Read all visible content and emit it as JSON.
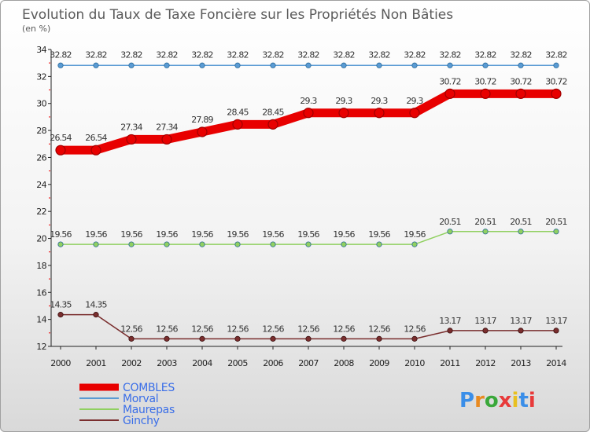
{
  "chart_data": {
    "type": "line",
    "title": "Evolution du Taux de Taxe Foncière sur les Propriétés Non Bâties",
    "subtitle": "(en %)",
    "categories": [
      "2000",
      "2001",
      "2002",
      "2003",
      "2004",
      "2005",
      "2006",
      "2007",
      "2008",
      "2009",
      "2010",
      "2011",
      "2012",
      "2013",
      "2014"
    ],
    "ylim": [
      12,
      34
    ],
    "yticks": [
      12,
      14,
      16,
      18,
      20,
      22,
      24,
      26,
      28,
      30,
      32,
      34
    ],
    "series": [
      {
        "name": "COMBLES",
        "color": "#e80000",
        "values": [
          26.54,
          26.54,
          27.34,
          27.34,
          27.89,
          28.45,
          28.45,
          29.3,
          29.3,
          29.3,
          29.3,
          30.72,
          30.72,
          30.72,
          30.72
        ],
        "labels": [
          "26.54",
          "26.54",
          "27.34",
          "27.34",
          "27.89",
          "28.45",
          "28.45",
          "29.3",
          "29.3",
          "29.3",
          "29.3",
          "30.72",
          "30.72",
          "30.72",
          "30.72"
        ]
      },
      {
        "name": "Morval",
        "color": "#5a9bd4",
        "values": [
          32.82,
          32.82,
          32.82,
          32.82,
          32.82,
          32.82,
          32.82,
          32.82,
          32.82,
          32.82,
          32.82,
          32.82,
          32.82,
          32.82,
          32.82
        ],
        "labels": [
          "32.82",
          "32.82",
          "32.82",
          "32.82",
          "32.82",
          "32.82",
          "32.82",
          "32.82",
          "32.82",
          "32.82",
          "32.82",
          "32.82",
          "32.82",
          "32.82",
          "32.82"
        ]
      },
      {
        "name": "Maurepas",
        "color": "#90d060",
        "values": [
          19.56,
          19.56,
          19.56,
          19.56,
          19.56,
          19.56,
          19.56,
          19.56,
          19.56,
          19.56,
          19.56,
          20.51,
          20.51,
          20.51,
          20.51
        ],
        "labels": [
          "19.56",
          "19.56",
          "19.56",
          "19.56",
          "19.56",
          "19.56",
          "19.56",
          "19.56",
          "19.56",
          "19.56",
          "19.56",
          "20.51",
          "20.51",
          "20.51",
          "20.51"
        ]
      },
      {
        "name": "Ginchy",
        "color": "#7a2e2e",
        "values": [
          14.35,
          14.35,
          12.56,
          12.56,
          12.56,
          12.56,
          12.56,
          12.56,
          12.56,
          12.56,
          12.56,
          13.17,
          13.17,
          13.17,
          13.17
        ],
        "labels": [
          "14.35",
          "14.35",
          "12.56",
          "12.56",
          "12.56",
          "12.56",
          "12.56",
          "12.56",
          "12.56",
          "12.56",
          "12.56",
          "13.17",
          "13.17",
          "13.17",
          "13.17"
        ]
      }
    ],
    "legend_position": "bottom-left",
    "legend_text_color": "#3a6ee8",
    "watermark": "Proxiti"
  }
}
